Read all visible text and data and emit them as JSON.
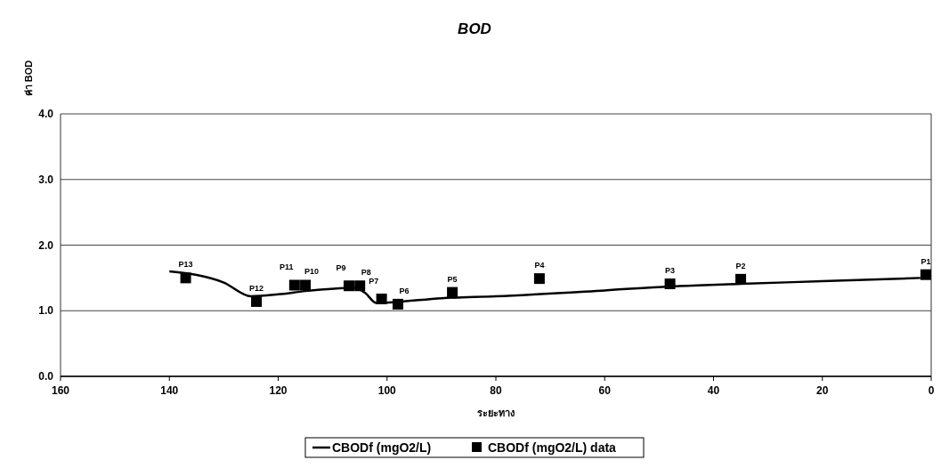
{
  "chart_data": {
    "type": "line",
    "title": "BOD",
    "xlabel": "ระยะทาง",
    "ylabel": "ค่า BOD",
    "xlim": [
      160,
      0
    ],
    "xticks": [
      {
        "value": 160,
        "label": "160"
      },
      {
        "value": 140,
        "label": "140"
      },
      {
        "value": 120,
        "label": "120"
      },
      {
        "value": 100,
        "label": "100"
      },
      {
        "value": 80,
        "label": "80"
      },
      {
        "value": 60,
        "label": "60"
      },
      {
        "value": 40,
        "label": "40"
      },
      {
        "value": 20,
        "label": "20"
      },
      {
        "value": 0,
        "label": "0"
      }
    ],
    "ylim": [
      0,
      4
    ],
    "yticks": [
      {
        "value": 0,
        "label": "0.0"
      },
      {
        "value": 1,
        "label": "1.0"
      },
      {
        "value": 2,
        "label": "2.0"
      },
      {
        "value": 3,
        "label": "3.0"
      },
      {
        "value": 4,
        "label": "4.0"
      }
    ],
    "grid": "y",
    "legend": "bottom",
    "series": [
      {
        "name": "CBODf (mgO2/L)",
        "type": "line",
        "color": "#000000",
        "marker": "none",
        "line_style": "solid",
        "x": [
          140,
          130,
          125,
          120,
          115,
          106,
          104,
          102,
          99,
          90,
          80,
          60,
          48,
          35,
          20,
          2
        ],
        "values": [
          1.6,
          1.43,
          1.22,
          1.25,
          1.3,
          1.35,
          1.27,
          1.12,
          1.13,
          1.19,
          1.22,
          1.31,
          1.37,
          1.41,
          1.45,
          1.5
        ]
      },
      {
        "name": "CBODf (mgO2/L) data",
        "type": "scatter",
        "color": "#000000",
        "marker": "square",
        "x": [
          1,
          35,
          48,
          72,
          88,
          98,
          101,
          105,
          107,
          115,
          117,
          124,
          137
        ],
        "values": [
          1.55,
          1.48,
          1.41,
          1.49,
          1.28,
          1.1,
          1.18,
          1.38,
          1.38,
          1.39,
          1.39,
          1.14,
          1.5
        ],
        "value_labels": [
          "P1",
          "P2",
          "P3",
          "P4",
          "P5",
          "P6",
          "P7",
          "P8",
          "P9",
          "P10",
          "P11",
          "P12",
          "P13"
        ]
      }
    ]
  }
}
